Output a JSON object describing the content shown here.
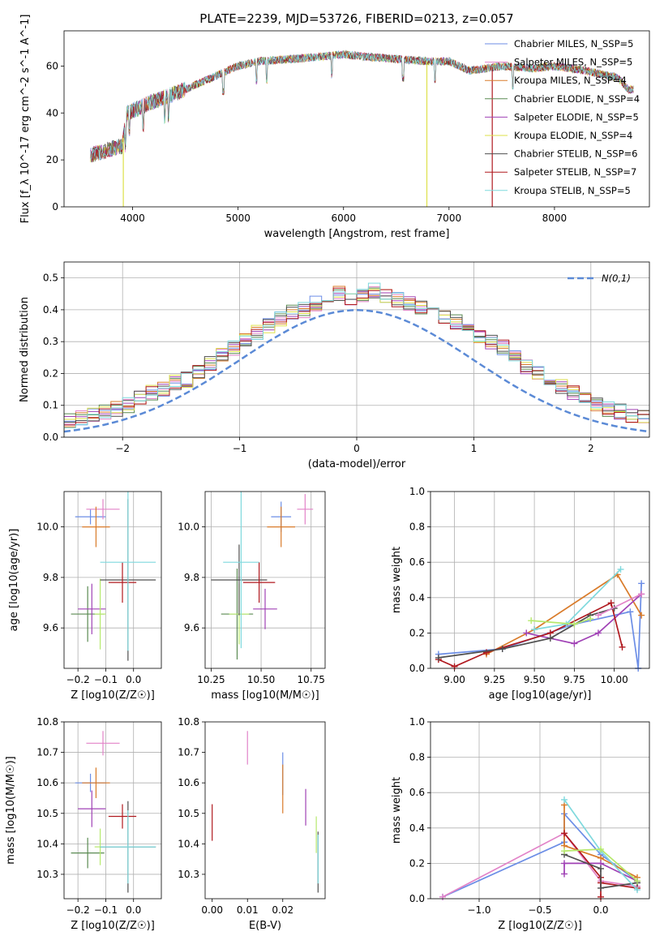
{
  "title": "PLATE=2239, MJD=53726, FIBERID=0213, z=0.057",
  "colors": [
    "#6c8ee6",
    "#e2853a",
    "#d97b2a",
    "#5a8a52",
    "#a042b5",
    "#dde04a",
    "#4f4f4f",
    "#b0191f",
    "#7fd9dd",
    "#e283c8",
    "#b6e96c"
  ],
  "chart_data": [
    {
      "id": "spectrum",
      "type": "line",
      "xlabel": "wavelength [Angstrom, rest frame]",
      "ylabel": "Flux [f_λ 10^-17 erg cm^-2 s^-1 A^-1]",
      "xlim": [
        3350,
        8900
      ],
      "ylim": [
        0,
        75
      ],
      "xticks": [
        4000,
        5000,
        6000,
        7000,
        8000
      ],
      "yticks": [
        0,
        20,
        40,
        60
      ],
      "grid": false,
      "legend": "top-right",
      "continuum": [
        [
          3600,
          22
        ],
        [
          3900,
          26
        ],
        [
          3950,
          40
        ],
        [
          4200,
          45
        ],
        [
          4500,
          50
        ],
        [
          4800,
          56
        ],
        [
          5000,
          60
        ],
        [
          5200,
          62
        ],
        [
          5500,
          63
        ],
        [
          5800,
          64
        ],
        [
          6000,
          65
        ],
        [
          6200,
          64
        ],
        [
          6500,
          63
        ],
        [
          6800,
          62
        ],
        [
          7000,
          62
        ],
        [
          7200,
          58
        ],
        [
          7500,
          60
        ],
        [
          7800,
          59
        ],
        [
          8000,
          60
        ],
        [
          8300,
          58
        ],
        [
          8600,
          55
        ],
        [
          8700,
          50
        ]
      ],
      "series": [
        {
          "name": "Chabrier MILES",
          "nssp": "5",
          "color": "#6c8ee6"
        },
        {
          "name": "Salpeter MILES",
          "nssp": "5",
          "color": "#e283c8"
        },
        {
          "name": "Kroupa MILES",
          "nssp": "4",
          "color": "#d97b2a"
        },
        {
          "name": "Chabrier ELODIE",
          "nssp": "4",
          "color": "#5a8a52"
        },
        {
          "name": "Salpeter ELODIE",
          "nssp": "5",
          "color": "#a042b5"
        },
        {
          "name": "Kroupa ELODIE",
          "nssp": "4",
          "color": "#dde04a"
        },
        {
          "name": "Chabrier STELIB",
          "nssp": "6",
          "color": "#4f4f4f"
        },
        {
          "name": "Salpeter STELIB",
          "nssp": "7",
          "color": "#b0191f"
        },
        {
          "name": "Kroupa STELIB",
          "nssp": "5",
          "color": "#7fd9dd"
        }
      ]
    },
    {
      "id": "residuals",
      "type": "histogram",
      "xlabel": "(data-model)/error",
      "ylabel": "Normed distribution",
      "xlim": [
        -2.5,
        2.5
      ],
      "ylim": [
        0,
        0.55
      ],
      "xticks": [
        -2,
        -1,
        0,
        1,
        2
      ],
      "yticks": [
        0.0,
        0.1,
        0.2,
        0.3,
        0.4,
        0.5
      ],
      "grid": true,
      "legend": "top-right",
      "reference_label": "N(0,1)",
      "bin_width": 0.1,
      "base_heights": [
        0.02,
        0.02,
        0.03,
        0.03,
        0.04,
        0.05,
        0.06,
        0.07,
        0.08,
        0.09,
        0.1,
        0.12,
        0.14,
        0.15,
        0.17,
        0.18,
        0.2,
        0.23,
        0.26,
        0.28,
        0.31,
        0.33,
        0.35,
        0.37,
        0.39,
        0.4,
        0.42,
        0.44,
        0.45,
        0.43,
        0.44,
        0.46,
        0.44,
        0.43,
        0.42,
        0.41,
        0.4,
        0.38,
        0.36,
        0.34,
        0.32,
        0.3,
        0.28,
        0.25,
        0.22,
        0.2,
        0.18,
        0.16,
        0.14,
        0.12,
        0.1,
        0.09,
        0.08,
        0.07,
        0.06,
        0.05,
        0.04,
        0.04,
        0.03,
        0.02
      ]
    },
    {
      "id": "age-vs-Z",
      "type": "errorbar",
      "xlabel": "Z [log10(Z/Z☉)]",
      "ylabel": "age [log10(age/yr)]",
      "xlim": [
        -0.25,
        0.1
      ],
      "ylim": [
        9.44,
        10.14
      ],
      "xticks": [
        -0.2,
        -0.1,
        0.0
      ],
      "yticks": [
        9.6,
        9.8,
        10.0
      ],
      "grid": true,
      "points": [
        {
          "x": -0.155,
          "xerr": 0.055,
          "y": 10.04,
          "yerr": 0.03,
          "color": "#6c8ee6"
        },
        {
          "x": -0.11,
          "xerr": 0.06,
          "y": 10.07,
          "yerr": 0.04,
          "color": "#e283c8"
        },
        {
          "x": -0.135,
          "xerr": 0.05,
          "y": 10.0,
          "yerr": 0.08,
          "color": "#d97b2a"
        },
        {
          "x": -0.165,
          "xerr": 0.06,
          "y": 9.655,
          "yerr": 0.11,
          "color": "#5a8a52"
        },
        {
          "x": -0.15,
          "xerr": 0.05,
          "y": 9.675,
          "yerr": 0.1,
          "color": "#a042b5"
        },
        {
          "x": -0.12,
          "xerr": 0.02,
          "y": 9.655,
          "yerr": 0.14,
          "color": "#b6e96c"
        },
        {
          "x": -0.02,
          "xerr": 0.1,
          "y": 9.79,
          "yerr": 0.32,
          "color": "#4f4f4f"
        },
        {
          "x": -0.04,
          "xerr": 0.05,
          "y": 9.78,
          "yerr": 0.08,
          "color": "#b0191f"
        },
        {
          "x": -0.02,
          "xerr": 0.1,
          "y": 9.86,
          "yerr": 0.35,
          "color": "#7fd9dd"
        }
      ]
    },
    {
      "id": "age-vs-mass",
      "type": "errorbar",
      "xlabel": "mass [log10(M/M☉)]",
      "ylabel": "",
      "xlim": [
        10.22,
        10.82
      ],
      "ylim": [
        9.44,
        10.14
      ],
      "xticks": [
        10.25,
        10.5,
        10.75
      ],
      "yticks": [
        9.6,
        9.8,
        10.0
      ],
      "grid": true,
      "points": [
        {
          "x": 10.6,
          "xerr": 0.05,
          "y": 10.04,
          "yerr": 0.06,
          "color": "#6c8ee6"
        },
        {
          "x": 10.72,
          "xerr": 0.04,
          "y": 10.07,
          "yerr": 0.06,
          "color": "#e283c8"
        },
        {
          "x": 10.6,
          "xerr": 0.07,
          "y": 10.0,
          "yerr": 0.08,
          "color": "#d97b2a"
        },
        {
          "x": 10.38,
          "xerr": 0.08,
          "y": 9.655,
          "yerr": 0.18,
          "color": "#5a8a52"
        },
        {
          "x": 10.52,
          "xerr": 0.06,
          "y": 9.675,
          "yerr": 0.08,
          "color": "#a042b5"
        },
        {
          "x": 10.39,
          "xerr": 0.05,
          "y": 9.655,
          "yerr": 0.12,
          "color": "#b6e96c"
        },
        {
          "x": 10.39,
          "xerr": 0.14,
          "y": 9.79,
          "yerr": 0.14,
          "color": "#4f4f4f"
        },
        {
          "x": 10.49,
          "xerr": 0.08,
          "y": 9.78,
          "yerr": 0.08,
          "color": "#b0191f"
        },
        {
          "x": 10.4,
          "xerr": 0.09,
          "y": 9.86,
          "yerr": 0.34,
          "color": "#7fd9dd"
        }
      ]
    },
    {
      "id": "weight-vs-age",
      "type": "line",
      "xlabel": "age [log10(age/yr)]",
      "ylabel": "mass weight",
      "xlim": [
        8.85,
        10.22
      ],
      "ylim": [
        0,
        1.0
      ],
      "xticks": [
        9.0,
        9.25,
        9.5,
        9.75,
        10.0
      ],
      "yticks": [
        0.0,
        0.2,
        0.4,
        0.6,
        0.8,
        1.0
      ],
      "grid": true,
      "series": [
        {
          "color": "#6c8ee6",
          "points": [
            [
              8.9,
              0.08
            ],
            [
              9.3,
              0.11
            ],
            [
              9.75,
              0.25
            ],
            [
              10.1,
              0.32
            ],
            [
              10.15,
              0.0
            ],
            [
              10.17,
              0.48
            ]
          ]
        },
        {
          "color": "#d97b2a",
          "points": [
            [
              9.2,
              0.08
            ],
            [
              9.5,
              0.22
            ],
            [
              10.02,
              0.53
            ],
            [
              10.17,
              0.3
            ]
          ]
        },
        {
          "color": "#a042b5",
          "points": [
            [
              9.45,
              0.2
            ],
            [
              9.75,
              0.14
            ],
            [
              9.9,
              0.2
            ],
            [
              10.17,
              0.42
            ]
          ]
        },
        {
          "color": "#b0191f",
          "points": [
            [
              8.9,
              0.05
            ],
            [
              9.0,
              0.01
            ],
            [
              9.2,
              0.09
            ],
            [
              9.6,
              0.2
            ],
            [
              9.98,
              0.37
            ],
            [
              10.05,
              0.12
            ]
          ]
        },
        {
          "color": "#4f4f4f",
          "points": [
            [
              8.9,
              0.06
            ],
            [
              9.3,
              0.11
            ],
            [
              9.6,
              0.17
            ],
            [
              9.85,
              0.3
            ],
            [
              10.0,
              0.34
            ]
          ]
        },
        {
          "color": "#7fd9dd",
          "points": [
            [
              9.5,
              0.22
            ],
            [
              9.7,
              0.25
            ],
            [
              10.04,
              0.56
            ]
          ]
        },
        {
          "color": "#b6e96c",
          "points": [
            [
              9.48,
              0.27
            ],
            [
              9.75,
              0.25
            ],
            [
              9.85,
              0.28
            ]
          ]
        },
        {
          "color": "#e283c8",
          "points": [
            [
              9.9,
              0.3
            ],
            [
              10.17,
              0.42
            ]
          ]
        }
      ]
    },
    {
      "id": "mass-vs-Z",
      "type": "errorbar",
      "xlabel": "Z [log10(Z/Z☉)]",
      "ylabel": "mass [log10(M/M☉)]",
      "xlim": [
        -0.25,
        0.1
      ],
      "ylim": [
        10.22,
        10.8
      ],
      "xticks": [
        -0.2,
        -0.1,
        0.0
      ],
      "yticks": [
        10.3,
        10.4,
        10.5,
        10.6,
        10.7,
        10.8
      ],
      "grid": true,
      "points": [
        {
          "x": -0.155,
          "xerr": 0.055,
          "y": 10.6,
          "yerr": 0.03,
          "color": "#6c8ee6"
        },
        {
          "x": -0.11,
          "xerr": 0.06,
          "y": 10.73,
          "yerr": 0.04,
          "color": "#e283c8"
        },
        {
          "x": -0.135,
          "xerr": 0.05,
          "y": 10.6,
          "yerr": 0.05,
          "color": "#d97b2a"
        },
        {
          "x": -0.165,
          "xerr": 0.06,
          "y": 10.37,
          "yerr": 0.05,
          "color": "#5a8a52"
        },
        {
          "x": -0.15,
          "xerr": 0.05,
          "y": 10.515,
          "yerr": 0.06,
          "color": "#a042b5"
        },
        {
          "x": -0.12,
          "xerr": 0.02,
          "y": 10.39,
          "yerr": 0.06,
          "color": "#b6e96c"
        },
        {
          "x": -0.02,
          "xerr": 0.1,
          "y": 10.39,
          "yerr": 0.15,
          "color": "#4f4f4f"
        },
        {
          "x": -0.04,
          "xerr": 0.05,
          "y": 10.49,
          "yerr": 0.04,
          "color": "#b0191f"
        },
        {
          "x": -0.02,
          "xerr": 0.1,
          "y": 10.39,
          "yerr": 0.12,
          "color": "#7fd9dd"
        }
      ]
    },
    {
      "id": "mass-vs-ebv",
      "type": "errorbar",
      "xlabel": "E(B-V)",
      "ylabel": "",
      "xlim": [
        -0.002,
        0.032
      ],
      "ylim": [
        10.22,
        10.8
      ],
      "xticks": [
        0.0,
        0.01,
        0.02
      ],
      "yticks": [
        10.3,
        10.4,
        10.5,
        10.6,
        10.7,
        10.8
      ],
      "grid": false,
      "points": [
        {
          "x": 0.0,
          "xerr": 0,
          "y": 10.47,
          "yerr": 0.06,
          "color": "#b0191f"
        },
        {
          "x": 0.01,
          "xerr": 0,
          "y": 10.715,
          "yerr": 0.055,
          "color": "#e283c8"
        },
        {
          "x": 0.02,
          "xerr": 0,
          "y": 10.63,
          "yerr": 0.07,
          "color": "#6c8ee6"
        },
        {
          "x": 0.02,
          "xerr": 0,
          "y": 10.58,
          "yerr": 0.08,
          "color": "#d97b2a"
        },
        {
          "x": 0.0265,
          "xerr": 0,
          "y": 10.52,
          "yerr": 0.06,
          "color": "#a042b5"
        },
        {
          "x": 0.0295,
          "xerr": 0,
          "y": 10.43,
          "yerr": 0.06,
          "color": "#b6e96c"
        },
        {
          "x": 0.03,
          "xerr": 0,
          "y": 10.34,
          "yerr": 0.1,
          "color": "#4f4f4f"
        },
        {
          "x": 0.03,
          "xerr": 0,
          "y": 10.35,
          "yerr": 0.08,
          "color": "#7fd9dd"
        }
      ]
    },
    {
      "id": "weight-vs-Z",
      "type": "line",
      "xlabel": "Z [log10(Z/Z☉)]",
      "ylabel": "mass weight",
      "xlim": [
        -1.4,
        0.4
      ],
      "ylim": [
        0,
        1.0
      ],
      "xticks": [
        -1.0,
        -0.5,
        0.0
      ],
      "yticks": [
        0.0,
        0.2,
        0.4,
        0.6,
        0.8,
        1.0
      ],
      "grid": true,
      "series": [
        {
          "color": "#6c8ee6",
          "points": [
            [
              -1.3,
              0.01
            ],
            [
              -0.3,
              0.32
            ],
            [
              -0.3,
              0.48
            ],
            [
              0.0,
              0.25
            ],
            [
              0.3,
              0.1
            ]
          ]
        },
        {
          "color": "#e283c8",
          "points": [
            [
              -1.3,
              0.01
            ],
            [
              -0.3,
              0.37
            ],
            [
              0.0,
              0.1
            ],
            [
              0.3,
              0.07
            ]
          ]
        },
        {
          "color": "#d97b2a",
          "points": [
            [
              -0.3,
              0.53
            ],
            [
              -0.3,
              0.3
            ],
            [
              0.0,
              0.23
            ],
            [
              0.3,
              0.12
            ]
          ]
        },
        {
          "color": "#a042b5",
          "points": [
            [
              -0.3,
              0.14
            ],
            [
              -0.3,
              0.2
            ],
            [
              0.0,
              0.2
            ],
            [
              0.3,
              0.1
            ]
          ]
        },
        {
          "color": "#b0191f",
          "points": [
            [
              -0.3,
              0.37
            ],
            [
              0.0,
              0.12
            ],
            [
              0.0,
              0.01
            ],
            [
              0.0,
              0.09
            ],
            [
              0.3,
              0.06
            ]
          ]
        },
        {
          "color": "#4f4f4f",
          "points": [
            [
              -0.3,
              0.25
            ],
            [
              0.0,
              0.17
            ],
            [
              0.0,
              0.06
            ],
            [
              0.3,
              0.09
            ]
          ]
        },
        {
          "color": "#7fd9dd",
          "points": [
            [
              -0.3,
              0.56
            ],
            [
              0.0,
              0.27
            ],
            [
              0.3,
              0.05
            ]
          ]
        },
        {
          "color": "#b6e96c",
          "points": [
            [
              -0.3,
              0.27
            ],
            [
              0.0,
              0.28
            ],
            [
              0.3,
              0.1
            ]
          ]
        }
      ]
    }
  ]
}
